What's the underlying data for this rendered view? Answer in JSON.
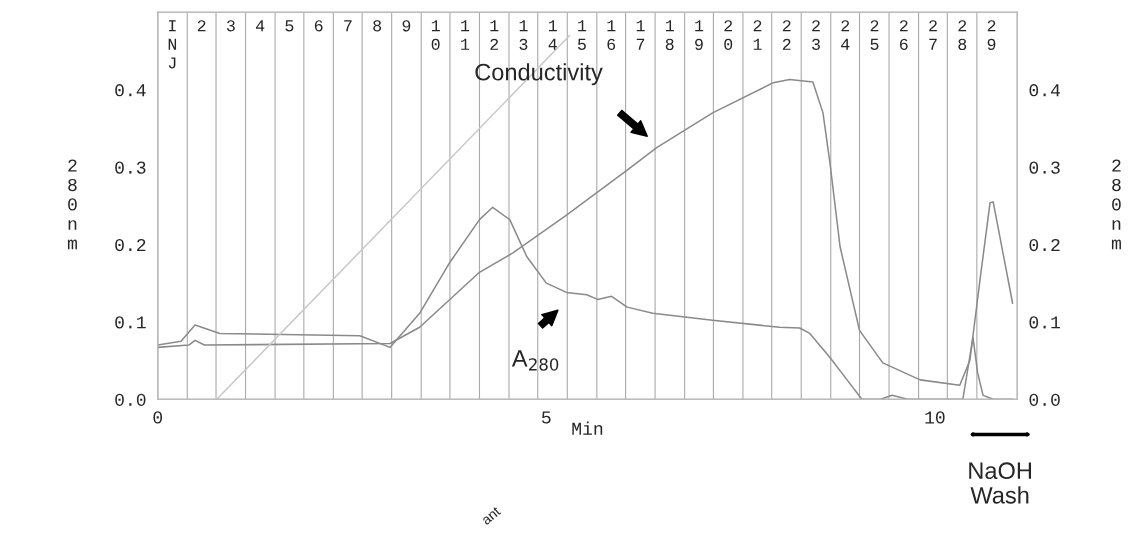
{
  "chart_data": {
    "type": "line",
    "xlabel": "Min",
    "ylabel": "280nm",
    "y2label": "280nm",
    "xlim": [
      0,
      11.06
    ],
    "xticks": [
      0,
      5,
      10
    ],
    "x2lim": [
      0.5,
      29.88
    ],
    "x2ticks": [
      {
        "value": 1,
        "label": "INJ"
      },
      2,
      3,
      4,
      5,
      6,
      7,
      8,
      9,
      10,
      11,
      12,
      13,
      14,
      15,
      16,
      17,
      18,
      19,
      20,
      21,
      22,
      23,
      24,
      25,
      26,
      27,
      28,
      29
    ],
    "ylim": [
      0,
      0.5
    ],
    "yticks": [
      {
        "value": 0,
        "label": "0.0"
      },
      0.1,
      0.2,
      0.3,
      0.4
    ],
    "y2lim": [
      0,
      0.5
    ],
    "y2ticks": [
      {
        "value": 0,
        "label": "0.0"
      },
      0.1,
      0.2,
      0.3,
      0.4
    ],
    "grid": false,
    "legend": false,
    "line_style": "solid",
    "marker": "none",
    "series": [
      {
        "color": "#8a8a8a",
        "x": [
          0,
          0.3,
          0.48,
          0.8,
          2.0,
          2.6,
          2.99,
          3.37,
          3.76,
          4.14,
          4.31,
          4.53,
          4.75,
          5.0,
          5.26,
          5.52,
          5.66,
          5.84,
          6.04,
          6.37,
          7.14,
          8.0,
          8.26,
          8.39,
          8.65,
          8.87,
          9.06,
          9.3,
          9.45,
          9.65,
          10.36,
          10.49,
          10.55,
          10.62,
          10.75,
          11.0
        ],
        "values": [
          0.07,
          0.075,
          0.096,
          0.085,
          0.083,
          0.082,
          0.067,
          0.111,
          0.177,
          0.232,
          0.248,
          0.232,
          0.184,
          0.15,
          0.138,
          0.135,
          0.129,
          0.133,
          0.119,
          0.111,
          0.102,
          0.093,
          0.092,
          0.085,
          0.054,
          0.025,
          0.0,
          0.0,
          0.005,
          0.0,
          0.0,
          0.08,
          0.034,
          0.005,
          0.0,
          0.0
        ]
      },
      {
        "color": "#8a8a8a",
        "x": [
          0,
          0.4,
          0.48,
          0.6,
          2.99,
          3.37,
          4.14,
          4.57,
          5.26,
          6.04,
          6.42,
          7.14,
          7.92,
          8.13,
          8.43,
          8.56,
          8.65,
          8.78,
          9.03,
          9.33,
          9.81,
          10.32,
          10.45,
          10.58,
          10.71,
          10.75,
          11.0
        ],
        "values": [
          0.067,
          0.07,
          0.076,
          0.07,
          0.072,
          0.093,
          0.164,
          0.189,
          0.238,
          0.296,
          0.325,
          0.37,
          0.409,
          0.413,
          0.41,
          0.37,
          0.305,
          0.197,
          0.089,
          0.047,
          0.025,
          0.018,
          0.05,
          0.154,
          0.254,
          0.255,
          0.124
        ]
      },
      {
        "color": "#c8c8c8",
        "x": [
          0.76,
          4.75,
          5.3
        ],
        "values": [
          0.0,
          0.413,
          0.47
        ]
      }
    ],
    "ref_lines": [
      {
        "axis": "x",
        "value": 0.38,
        "color": "#aaaaaa"
      },
      {
        "axis": "x",
        "value": 0.75,
        "color": "#aaaaaa"
      },
      {
        "axis": "x",
        "value": 1.13,
        "color": "#aaaaaa"
      },
      {
        "axis": "x",
        "value": 1.51,
        "color": "#aaaaaa"
      },
      {
        "axis": "x",
        "value": 1.88,
        "color": "#aaaaaa"
      },
      {
        "axis": "x",
        "value": 2.26,
        "color": "#aaaaaa"
      },
      {
        "axis": "x",
        "value": 2.63,
        "color": "#aaaaaa"
      },
      {
        "axis": "x",
        "value": 3.01,
        "color": "#aaaaaa"
      },
      {
        "axis": "x",
        "value": 3.39,
        "color": "#aaaaaa"
      },
      {
        "axis": "x",
        "value": 3.76,
        "color": "#aaaaaa"
      },
      {
        "axis": "x",
        "value": 4.14,
        "color": "#aaaaaa"
      },
      {
        "axis": "x",
        "value": 4.52,
        "color": "#aaaaaa"
      },
      {
        "axis": "x",
        "value": 4.89,
        "color": "#aaaaaa"
      },
      {
        "axis": "x",
        "value": 5.27,
        "color": "#aaaaaa"
      },
      {
        "axis": "x",
        "value": 5.65,
        "color": "#aaaaaa"
      },
      {
        "axis": "x",
        "value": 6.02,
        "color": "#aaaaaa"
      },
      {
        "axis": "x",
        "value": 6.4,
        "color": "#aaaaaa"
      },
      {
        "axis": "x",
        "value": 6.78,
        "color": "#aaaaaa"
      },
      {
        "axis": "x",
        "value": 7.15,
        "color": "#aaaaaa"
      },
      {
        "axis": "x",
        "value": 7.53,
        "color": "#aaaaaa"
      },
      {
        "axis": "x",
        "value": 7.9,
        "color": "#aaaaaa"
      },
      {
        "axis": "x",
        "value": 8.28,
        "color": "#aaaaaa"
      },
      {
        "axis": "x",
        "value": 8.66,
        "color": "#aaaaaa"
      },
      {
        "axis": "x",
        "value": 9.03,
        "color": "#aaaaaa"
      },
      {
        "axis": "x",
        "value": 9.41,
        "color": "#aaaaaa"
      },
      {
        "axis": "x",
        "value": 9.79,
        "color": "#aaaaaa"
      },
      {
        "axis": "x",
        "value": 10.16,
        "color": "#aaaaaa"
      },
      {
        "axis": "x",
        "value": 10.54,
        "color": "#aaaaaa"
      }
    ],
    "annotations": [
      "Conductivity",
      "A$_{280}$",
      "NaOH\nWash",
      "ant"
    ]
  }
}
